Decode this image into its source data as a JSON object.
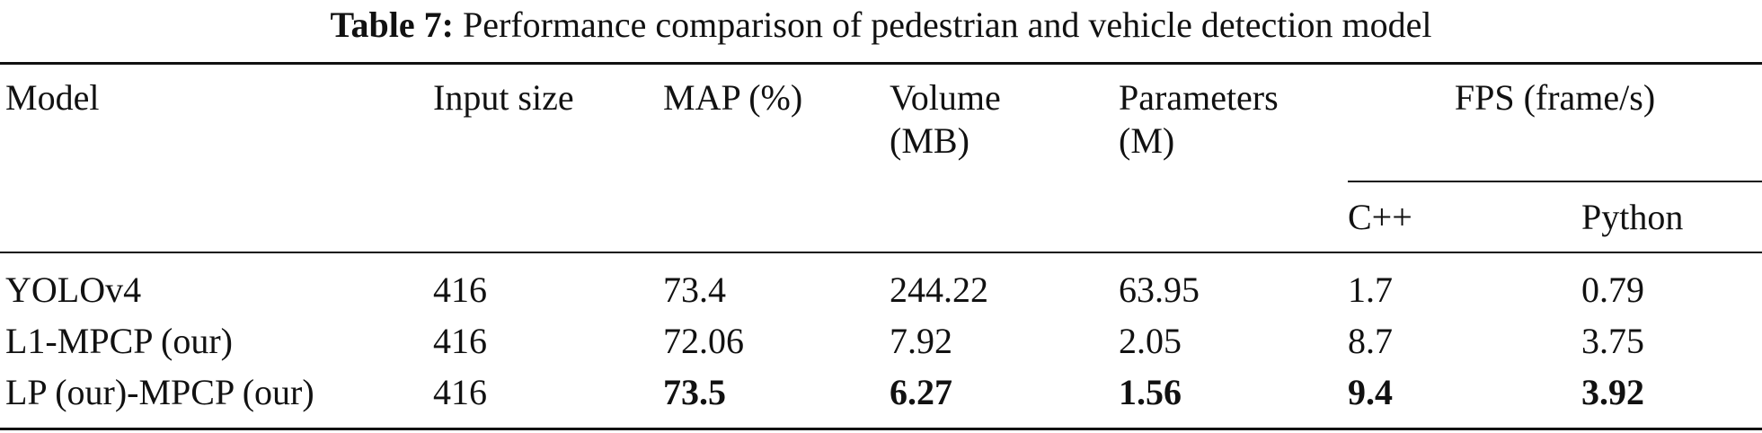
{
  "caption": {
    "label": "Table 7:",
    "text": "Performance comparison of pedestrian and vehicle detection model"
  },
  "headers": {
    "model": "Model",
    "input_size": "Input size",
    "map": "MAP (%)",
    "volume_line1": "Volume",
    "volume_line2": "(MB)",
    "parameters_line1": "Parameters",
    "parameters_line2": "(M)",
    "fps": "FPS (frame/s)",
    "fps_cpp": "C++",
    "fps_python": "Python"
  },
  "rows": [
    {
      "model": "YOLOv4",
      "input_size": "416",
      "map": "73.4",
      "volume": "244.22",
      "parameters": "63.95",
      "fps_cpp": "1.7",
      "fps_python": "0.79"
    },
    {
      "model": "L1-MPCP (our)",
      "input_size": "416",
      "map": "72.06",
      "volume": "7.92",
      "parameters": "2.05",
      "fps_cpp": "8.7",
      "fps_python": "3.75"
    },
    {
      "model": "LP (our)-MPCP (our)",
      "input_size": "416",
      "map": "73.5",
      "volume": "6.27",
      "parameters": "1.56",
      "fps_cpp": "9.4",
      "fps_python": "3.92"
    }
  ]
}
